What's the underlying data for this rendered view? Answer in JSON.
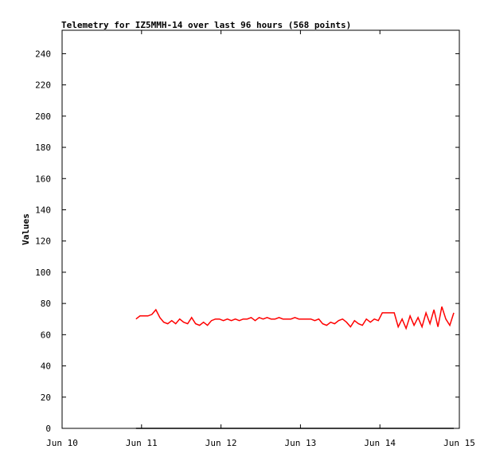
{
  "chart_data": {
    "type": "line",
    "title": "Telemetry for IZ5MMH-14 over last 96 hours (568 points)",
    "y_label": "Values",
    "xlim": [
      0,
      5
    ],
    "xticks": [
      {
        "value": 0,
        "label": "Jun 10"
      },
      {
        "value": 1,
        "label": "Jun 11"
      },
      {
        "value": 2,
        "label": "Jun 12"
      },
      {
        "value": 3,
        "label": "Jun 13"
      },
      {
        "value": 4,
        "label": "Jun 14"
      },
      {
        "value": 5,
        "label": "Jun 15"
      }
    ],
    "ylim": [
      0,
      255
    ],
    "yticks": [
      0,
      20,
      40,
      60,
      80,
      100,
      120,
      140,
      160,
      180,
      200,
      220,
      240
    ],
    "series": [
      {
        "color": "#ff0000",
        "x": [
          0.93,
          0.98,
          1.03,
          1.08,
          1.13,
          1.18,
          1.23,
          1.28,
          1.33,
          1.38,
          1.43,
          1.48,
          1.53,
          1.58,
          1.63,
          1.68,
          1.73,
          1.78,
          1.83,
          1.88,
          1.93,
          1.98,
          2.03,
          2.08,
          2.13,
          2.18,
          2.23,
          2.28,
          2.33,
          2.38,
          2.43,
          2.48,
          2.53,
          2.58,
          2.63,
          2.68,
          2.73,
          2.78,
          2.83,
          2.88,
          2.93,
          2.98,
          3.03,
          3.08,
          3.13,
          3.18,
          3.23,
          3.28,
          3.33,
          3.38,
          3.43,
          3.48,
          3.53,
          3.58,
          3.63,
          3.68,
          3.73,
          3.78,
          3.83,
          3.88,
          3.93,
          3.98,
          4.03,
          4.08,
          4.13,
          4.18,
          4.23,
          4.28,
          4.33,
          4.38,
          4.43,
          4.48,
          4.53,
          4.58,
          4.63,
          4.68,
          4.73,
          4.78,
          4.83,
          4.88,
          4.93
        ],
        "values": [
          70,
          72,
          72,
          72,
          73,
          76,
          71,
          68,
          67,
          69,
          67,
          70,
          68,
          67,
          71,
          67,
          66,
          68,
          66,
          69,
          70,
          70,
          69,
          70,
          69,
          70,
          69,
          70,
          70,
          71,
          69,
          71,
          70,
          71,
          70,
          70,
          71,
          70,
          70,
          70,
          71,
          70,
          70,
          70,
          70,
          69,
          70,
          67,
          66,
          68,
          67,
          69,
          70,
          68,
          65,
          69,
          67,
          66,
          70,
          68,
          70,
          69,
          74,
          74,
          74,
          74,
          65,
          70,
          64,
          72,
          66,
          71,
          65,
          74,
          67,
          76,
          65,
          78,
          70,
          66,
          74
        ]
      },
      {
        "color": "#000000",
        "x": [
          0.93,
          4.93
        ],
        "values": [
          0,
          0
        ]
      }
    ]
  }
}
